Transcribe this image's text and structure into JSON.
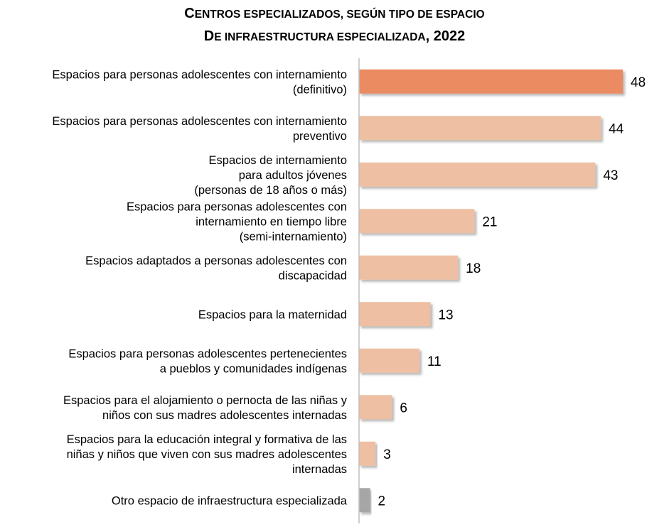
{
  "chart_data": {
    "type": "bar",
    "orientation": "horizontal",
    "title_line1_lead": "C",
    "title_line1_rest": "ENTROS ESPECIALIZADOS, SEGÚN TIPO DE ESPACIO",
    "title_line2_lead": "D",
    "title_line2_rest": "E INFRAESTRUCTURA ESPECIALIZADA",
    "title_line2_year": ", 2022",
    "categories": [
      [
        "Espacios para personas adolescentes con internamiento",
        "(definitivo)"
      ],
      [
        "Espacios para personas adolescentes con internamiento",
        "preventivo"
      ],
      [
        "Espacios de internamiento",
        "para adultos jóvenes",
        "(personas de 18 años o más)"
      ],
      [
        "Espacios para personas adolescentes con",
        "internamiento en tiempo libre",
        "(semi-internamiento)"
      ],
      [
        "Espacios adaptados a personas adolescentes con",
        "discapacidad"
      ],
      [
        "Espacios para la maternidad"
      ],
      [
        "Espacios para personas adolescentes pertenecientes",
        "a pueblos y comunidades indígenas"
      ],
      [
        "Espacios para el alojamiento o pernocta de las niñas y",
        "niños con sus madres adolescentes internadas"
      ],
      [
        "Espacios para la educación integral y formativa de las",
        "niñas y niños que viven con sus madres adolescentes",
        "internadas"
      ],
      [
        "Otro espacio de infraestructura especializada"
      ]
    ],
    "values": [
      48,
      44,
      43,
      21,
      18,
      13,
      11,
      6,
      3,
      2
    ],
    "xlim": [
      0,
      48
    ],
    "grid": false,
    "colors": {
      "highlight": "#EB8B62",
      "default": "#EEBFA2",
      "other": "#A6A6A6",
      "axis": "#BFBFBF"
    }
  }
}
